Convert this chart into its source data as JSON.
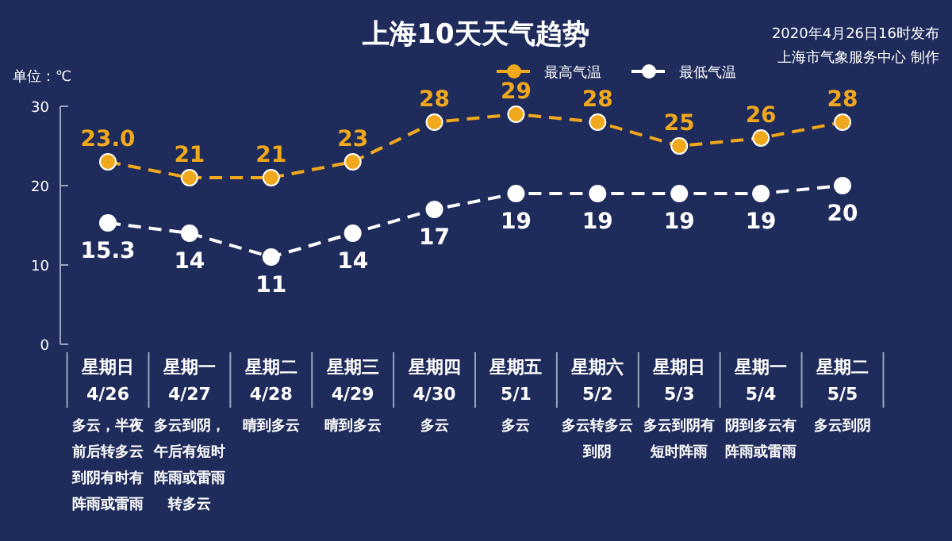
{
  "chart_data": {
    "type": "line",
    "title": "上海10天天气趋势",
    "ylabel": "单位：℃",
    "annotations": [
      "2020年4月26日16时发布",
      "上海市气象服务中心 制作"
    ],
    "categories": [
      "星期日\n4/26\n多云，半夜前后转多云到阴有时有阵雨或雷雨",
      "星期一\n4/27\n多云到阴，午后有短时阵雨或雷雨转多云",
      "星期二\n4/28\n晴到多云",
      "星期三\n4/29\n晴到多云",
      "星期四\n4/30\n多云",
      "星期五\n5/1\n多云",
      "星期六\n5/2\n多云转多云到阴",
      "星期日\n5/3\n多云到阴有短时阵雨",
      "星期一\n5/4\n阴到多云有阵雨或雷雨",
      "星期二\n5/5\n多云到阴"
    ],
    "series": [
      {
        "name": "最高气温",
        "color": "#f0a81c",
        "values": [
          23.0,
          21,
          21,
          23,
          28,
          29,
          28,
          25,
          26,
          28
        ],
        "value_labels": [
          "23.0",
          "21",
          "21",
          "23",
          "28",
          "29",
          "28",
          "25",
          "26",
          "28"
        ]
      },
      {
        "name": "最低气温",
        "color": "#ffffff",
        "values": [
          15.3,
          14,
          11,
          14,
          17,
          19,
          19,
          19,
          19,
          20
        ],
        "value_labels": [
          "15.3",
          "14",
          "11",
          "14",
          "17",
          "19",
          "19",
          "19",
          "19",
          "20"
        ]
      }
    ],
    "ylim": [
      0,
      30
    ],
    "yticks": [
      0,
      10,
      20,
      30
    ],
    "legend": "top",
    "marker": "circle",
    "line_style": "dashed",
    "grid": false
  }
}
